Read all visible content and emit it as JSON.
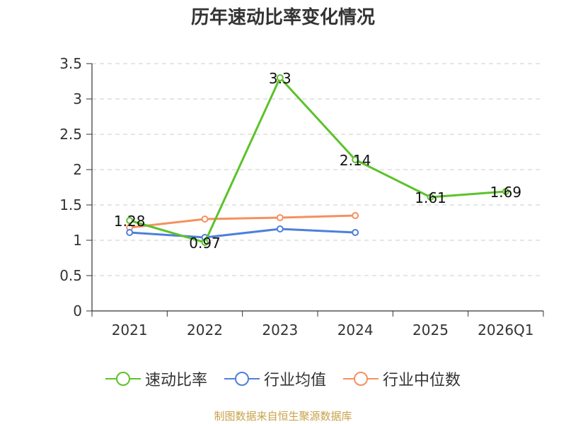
{
  "chart_data": {
    "type": "line",
    "title": "历年速动比率变化情况",
    "categories": [
      "2021",
      "2022",
      "2023",
      "2024",
      "2025",
      "2026Q1"
    ],
    "ylim": [
      0,
      3.5
    ],
    "yticks": [
      "0",
      "0.5",
      "1",
      "1.5",
      "2",
      "2.5",
      "3",
      "3.5"
    ],
    "grid": true,
    "legend_position": "bottom",
    "series": [
      {
        "name": "速动比率",
        "color": "#5cc22a",
        "values": [
          1.28,
          0.97,
          3.3,
          2.14,
          1.61,
          1.69
        ],
        "labels": [
          "1.28",
          "0.97",
          "3.3",
          "2.14",
          "1.61",
          "1.69"
        ]
      },
      {
        "name": "行业均值",
        "color": "#4e7fdc",
        "values": [
          1.11,
          1.04,
          1.16,
          1.11,
          null,
          null
        ]
      },
      {
        "name": "行业中位数",
        "color": "#f4915e",
        "values": [
          1.18,
          1.3,
          1.32,
          1.35,
          null,
          null
        ]
      }
    ]
  },
  "source_note": "制图数据来自恒生聚源数据库"
}
